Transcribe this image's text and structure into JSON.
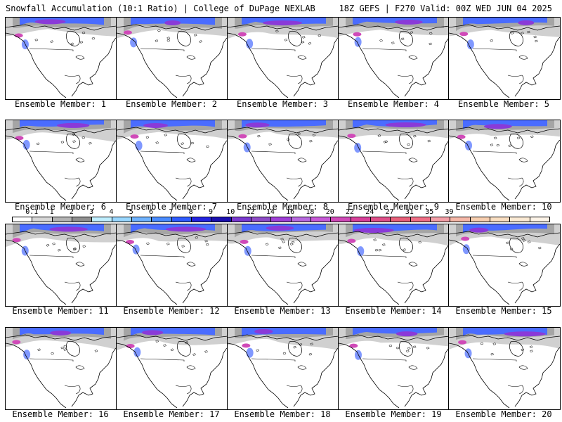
{
  "header": {
    "title": "Snowfall Accumulation (10:1 Ratio) | College of DuPage NEXLAB",
    "run_info": "18Z GEFS | F270 Valid: 00Z WED JUN 04 2025"
  },
  "panels": [
    {
      "label": "Ensemble Member: 1"
    },
    {
      "label": "Ensemble Member: 2"
    },
    {
      "label": "Ensemble Member: 3"
    },
    {
      "label": "Ensemble Member: 4"
    },
    {
      "label": "Ensemble Member: 5"
    },
    {
      "label": "Ensemble Member: 6"
    },
    {
      "label": "Ensemble Member: 7"
    },
    {
      "label": "Ensemble Member: 8"
    },
    {
      "label": "Ensemble Member: 9"
    },
    {
      "label": "Ensemble Member: 10"
    },
    {
      "label": "Ensemble Member: 11"
    },
    {
      "label": "Ensemble Member: 12"
    },
    {
      "label": "Ensemble Member: 13"
    },
    {
      "label": "Ensemble Member: 14"
    },
    {
      "label": "Ensemble Member: 15"
    },
    {
      "label": "Ensemble Member: 16"
    },
    {
      "label": "Ensemble Member: 17"
    },
    {
      "label": "Ensemble Member: 18"
    },
    {
      "label": "Ensemble Member: 19"
    },
    {
      "label": "Ensemble Member: 20"
    }
  ],
  "colorbar": {
    "labels": [
      "0.1",
      "1",
      "2",
      "3",
      "4",
      "5",
      "6",
      "7",
      "8",
      "9",
      "10",
      "12",
      "14",
      "16",
      "18",
      "20",
      "22",
      "24",
      "27",
      "31",
      "35",
      "39"
    ],
    "colors": [
      "#ffffff",
      "#d8d8d8",
      "#b4b4b4",
      "#909090",
      "#bfefff",
      "#9ad8ff",
      "#6fb3ff",
      "#4a8cff",
      "#2f5cff",
      "#2424e0",
      "#1a0fb0",
      "#7a3ad0",
      "#8e4cc8",
      "#a040d8",
      "#b86ae0",
      "#c85ad8",
      "#d04ab8",
      "#d8409a",
      "#e0508a",
      "#e8607a",
      "#f06f86",
      "#f4a0a8",
      "#f6b8a8",
      "#f8cfb0",
      "#fadfc2",
      "#fbead4",
      "#fdf4e8"
    ],
    "max_value_color": "#fdf4e8"
  },
  "map_colors": {
    "light_snow": "#d0d0d0",
    "gray_snow": "#9a9a9a",
    "blue_snow": "#4a6cff",
    "purple_snow": "#8a3ad8",
    "magenta_snow": "#d04ab8",
    "coastline": "#000000"
  }
}
